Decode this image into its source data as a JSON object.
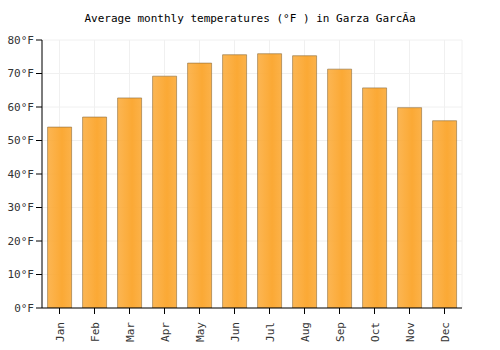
{
  "chart_data": {
    "type": "bar",
    "title": "Average monthly temperatures (°F ) in Garza GarcÃ­a",
    "categories": [
      "Jan",
      "Feb",
      "Mar",
      "Apr",
      "May",
      "Jun",
      "Jul",
      "Aug",
      "Sep",
      "Oct",
      "Nov",
      "Dec"
    ],
    "values": [
      54,
      57,
      62.7,
      69.2,
      73.1,
      75.6,
      75.9,
      75.3,
      71.3,
      65.7,
      59.8,
      55.9
    ],
    "color": "#fba935",
    "ylim": [
      0,
      80
    ],
    "yticks": [
      {
        "value": 0,
        "label": "0°F"
      },
      {
        "value": 10,
        "label": "10°F"
      },
      {
        "value": 20,
        "label": "20°F"
      },
      {
        "value": 30,
        "label": "30°F"
      },
      {
        "value": 40,
        "label": "40°F"
      },
      {
        "value": 50,
        "label": "50°F"
      },
      {
        "value": 60,
        "label": "60°F"
      },
      {
        "value": 70,
        "label": "70°F"
      },
      {
        "value": 80,
        "label": "80°F"
      }
    ],
    "grid": true
  }
}
